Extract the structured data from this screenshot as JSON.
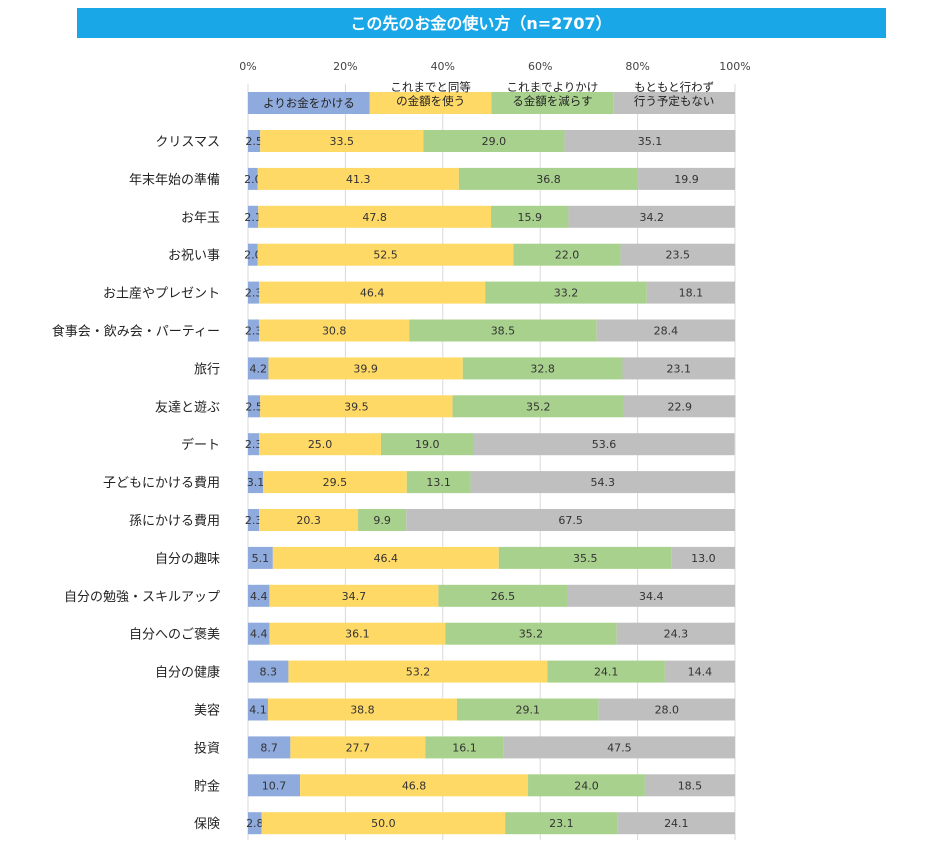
{
  "chart_data": {
    "type": "bar",
    "orientation": "horizontal",
    "stacked": true,
    "title": "この先のお金の使い方（n=2707）",
    "xlim": [
      0,
      100
    ],
    "x_ticks": [
      "0%",
      "20%",
      "40%",
      "60%",
      "80%",
      "100%"
    ],
    "grid": true,
    "legend_position": "top",
    "categories": [
      "クリスマス",
      "年末年始の準備",
      "お年玉",
      "お祝い事",
      "お土産やプレゼント",
      "食事会・飲み会・パーティー",
      "旅行",
      "友達と遊ぶ",
      "デート",
      "子どもにかける費用",
      "孫にかける費用",
      "自分の趣味",
      "自分の勉強・スキルアップ",
      "自分へのご褒美",
      "自分の健康",
      "美容",
      "投資",
      "貯金",
      "保険"
    ],
    "series": [
      {
        "name": "よりお金をかける",
        "legend_lines": [
          "よりお金をかける"
        ],
        "color": "#8faadc",
        "values": [
          2.5,
          2.0,
          2.1,
          2.0,
          2.3,
          2.3,
          4.2,
          2.5,
          2.3,
          3.1,
          2.3,
          5.1,
          4.4,
          4.4,
          8.3,
          4.1,
          8.7,
          10.7,
          2.8
        ]
      },
      {
        "name": "これまでと同等の金額を使う",
        "legend_lines": [
          "これまでと同等",
          "の金額を使う"
        ],
        "color": "#ffd966",
        "values": [
          33.5,
          41.3,
          47.8,
          52.5,
          46.4,
          30.8,
          39.9,
          39.5,
          25.0,
          29.5,
          20.3,
          46.4,
          34.7,
          36.1,
          53.2,
          38.8,
          27.7,
          46.8,
          50.0
        ]
      },
      {
        "name": "これまでよりかける金額を減らす",
        "legend_lines": [
          "これまでよりかけ",
          "る金額を減らす"
        ],
        "color": "#a9d18e",
        "values": [
          29.0,
          36.8,
          15.9,
          22.0,
          33.2,
          38.5,
          32.8,
          35.2,
          19.0,
          13.1,
          9.9,
          35.5,
          26.5,
          35.2,
          24.1,
          29.1,
          16.1,
          24.0,
          23.1
        ]
      },
      {
        "name": "もともと行わず行う予定もない",
        "legend_lines": [
          "もともと行わず",
          "行う予定もない"
        ],
        "color": "#bfbfbf",
        "values": [
          35.1,
          19.9,
          34.2,
          23.5,
          18.1,
          28.4,
          23.1,
          22.9,
          53.6,
          54.3,
          67.5,
          13.0,
          34.4,
          24.3,
          14.4,
          28.0,
          47.5,
          18.5,
          24.1
        ]
      }
    ]
  }
}
